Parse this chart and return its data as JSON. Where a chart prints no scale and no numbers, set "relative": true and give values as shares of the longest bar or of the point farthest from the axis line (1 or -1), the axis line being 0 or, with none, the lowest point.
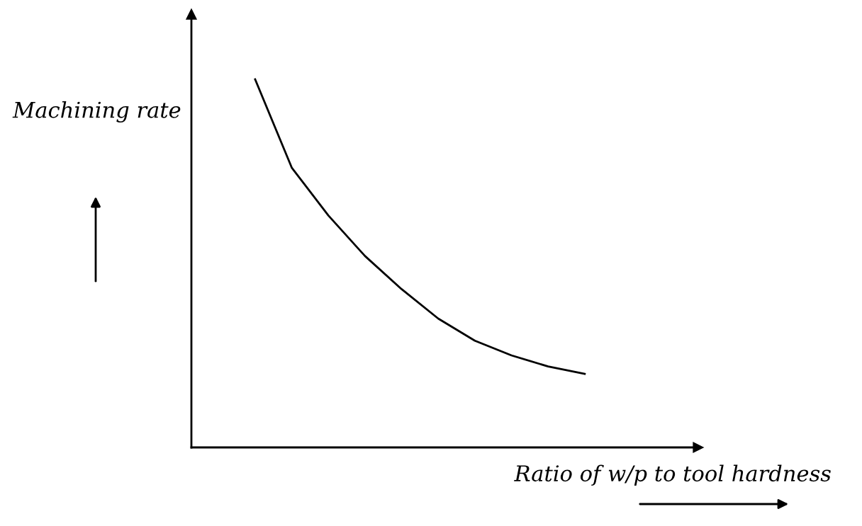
{
  "chart_data": {
    "type": "line",
    "relative": true,
    "xlabel": "Ratio of w/p to tool hardness",
    "ylabel": "Machining rate",
    "categories": [
      null,
      null,
      null,
      null,
      null,
      null,
      null,
      null,
      null,
      null
    ],
    "series": [
      {
        "color": "#000000",
        "values": [
          1.0,
          0.76,
          0.63,
          0.52,
          0.43,
          0.35,
          0.29,
          0.25,
          0.22,
          0.2
        ]
      }
    ],
    "marker": "none",
    "line_style": "solid",
    "grid": false,
    "legend": false
  }
}
